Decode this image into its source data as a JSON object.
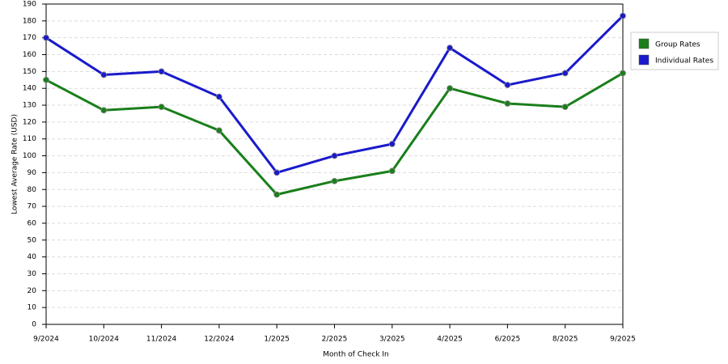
{
  "chart_data": {
    "type": "line",
    "x_label": "Month of Check In",
    "y_label": "Lowest Average Rate (USD)",
    "categories": [
      "9/2024",
      "10/2024",
      "11/2024",
      "12/2024",
      "1/2025",
      "2/2025",
      "3/2025",
      "4/2025",
      "6/2025",
      "8/2025",
      "9/2025"
    ],
    "series": [
      {
        "name": "Group Rates",
        "color": "#1a7f1a",
        "values": [
          145,
          127,
          129,
          115,
          77,
          85,
          91,
          140,
          131,
          129,
          149
        ]
      },
      {
        "name": "Individual Rates",
        "color": "#1a1acc",
        "values": [
          170,
          148,
          150,
          135,
          90,
          100,
          107,
          164,
          142,
          149,
          183
        ]
      }
    ],
    "ylim": [
      0,
      190
    ],
    "yticks": [
      0,
      10,
      20,
      30,
      40,
      50,
      60,
      70,
      80,
      90,
      100,
      110,
      120,
      130,
      140,
      150,
      160,
      170,
      180,
      190
    ],
    "grid": true,
    "legend": "right"
  }
}
